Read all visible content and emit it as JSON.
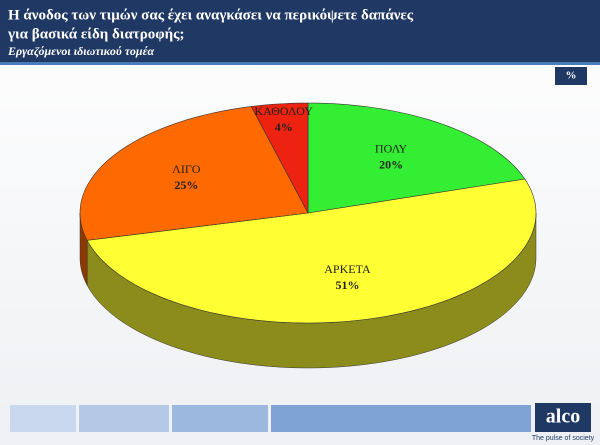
{
  "chart_data": {
    "type": "pie",
    "title_lines": [
      "Η άνοδος των τιμών σας  έχει αναγκάσει να περικόψετε δαπάνες",
      "για  βασικά είδη διατροφής;"
    ],
    "subtitle": "Εργαζόμενοι ιδιωτικού τομέα",
    "unit": "%",
    "categories": [
      "ΠΟΛΥ",
      "ΑΡΚΕΤΑ",
      "ΛΙΓΟ",
      "ΚΑΘΟΛΟΥ"
    ],
    "values": [
      20,
      51,
      25,
      4
    ],
    "value_labels": [
      "20%",
      "51%",
      "25%",
      "4%"
    ],
    "colors": [
      "#33ee33",
      "#ffff33",
      "#ff6a00",
      "#ee2211"
    ]
  },
  "footer": {
    "logo": "alco",
    "tagline": "The pulse of society"
  }
}
